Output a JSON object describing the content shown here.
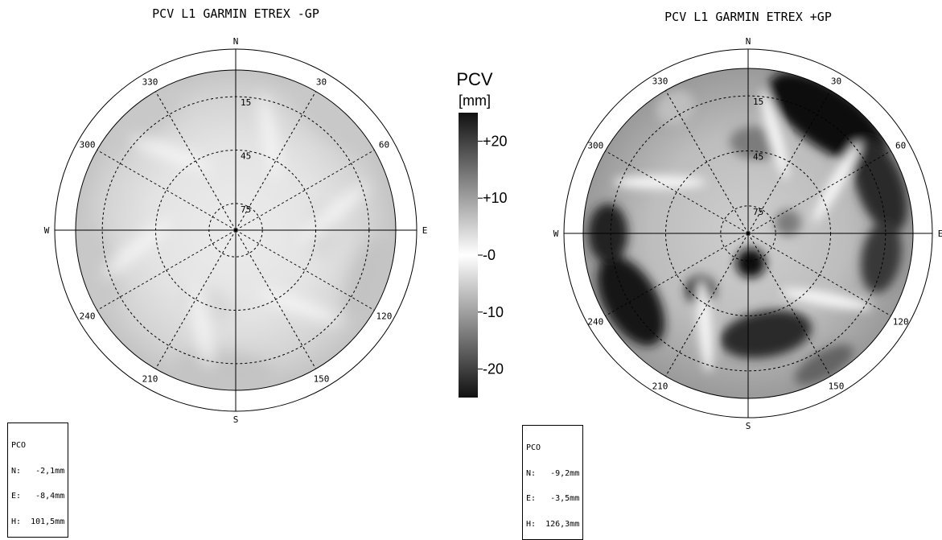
{
  "chart_data": [
    {
      "type": "heatmap",
      "title": "PCV L1    GARMIN ETREX -GP",
      "cardinals": {
        "n": "N",
        "e": "E",
        "s": "S",
        "w": "W"
      },
      "azimuth_labels": [
        "30",
        "60",
        "120",
        "150",
        "210",
        "240",
        "300",
        "330"
      ],
      "elevation_labels": [
        "15",
        "45",
        "75"
      ],
      "color_scale": "pcv_mm",
      "pco_box": {
        "header": "PCO",
        "n": "N:   -2,1mm",
        "e": "E:   -8,4mm",
        "h": "H:  101,5mm"
      },
      "pattern_strength": 0.45
    },
    {
      "type": "heatmap",
      "title": "PCV L1    GARMIN ETREX +GP",
      "cardinals": {
        "n": "N",
        "e": "E",
        "s": "S",
        "w": "W"
      },
      "azimuth_labels": [
        "30",
        "60",
        "120",
        "150",
        "210",
        "240",
        "300",
        "330"
      ],
      "elevation_labels": [
        "15",
        "45",
        "75"
      ],
      "color_scale": "pcv_mm",
      "pco_box": {
        "header": "PCO",
        "n": "N:   -9,2mm",
        "e": "E:   -3,5mm",
        "h": "H:  126,3mm"
      },
      "pattern_strength": 1.0
    }
  ],
  "colorbar": {
    "title_line1": "PCV",
    "title_line2": "[mm]",
    "ticks": [
      "+20",
      "+10",
      "-0",
      "-10",
      "-20"
    ],
    "range": [
      -25,
      25
    ],
    "colors": {
      "low": "#111111",
      "mid": "#ffffff",
      "high": "#111111"
    }
  }
}
